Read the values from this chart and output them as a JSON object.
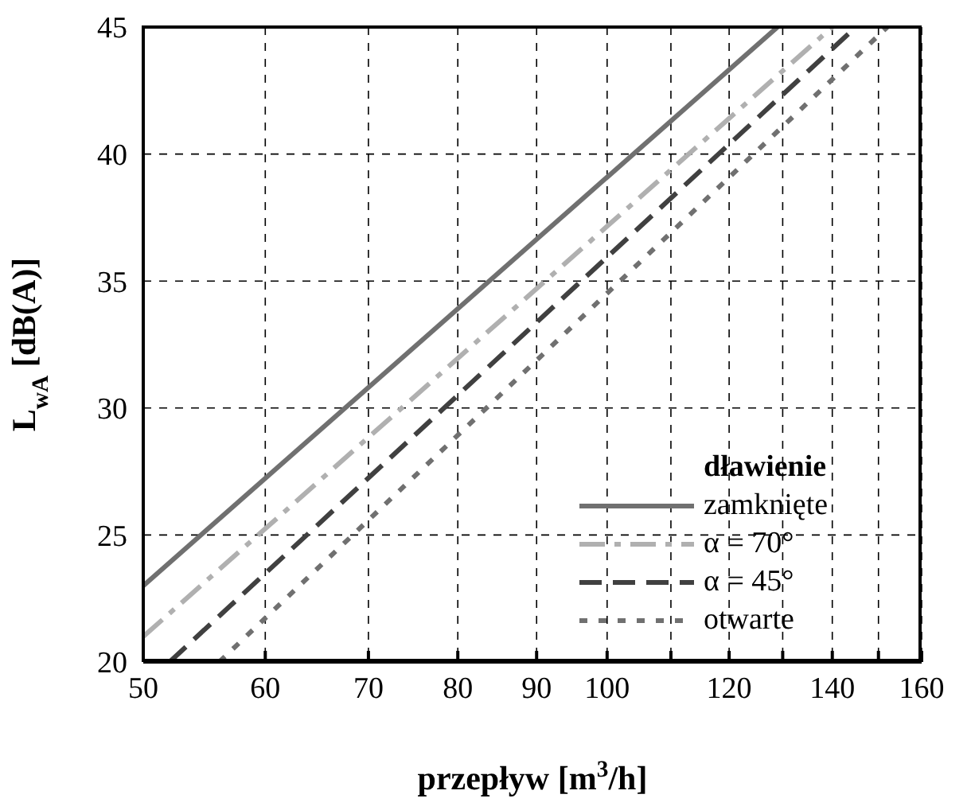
{
  "chart_data": {
    "type": "line",
    "xlabel": "przepływ [m$^{3}$/h]",
    "ylabel": "L$_{wA}$ [dB(A)]",
    "legend_title": "dławienie",
    "series": [
      {
        "name": "zamknięte",
        "color": "#707070",
        "line_style": "solid",
        "x": [
          50,
          129
        ],
        "values": [
          23,
          45
        ]
      },
      {
        "name": "α = 70°",
        "color": "#b0b0b0",
        "line_style": "dashdot",
        "x": [
          50,
          140
        ],
        "values": [
          21,
          45
        ]
      },
      {
        "name": "α = 45°",
        "color": "#404040",
        "line_style": "dashed",
        "x": [
          52,
          145
        ],
        "values": [
          20,
          45
        ]
      },
      {
        "name": "otwarte",
        "color": "#707070",
        "line_style": "dotted",
        "x": [
          56,
          152
        ],
        "values": [
          20,
          45
        ]
      }
    ],
    "log": "x",
    "xlim": [
      50,
      160
    ],
    "xticks": [
      50,
      60,
      70,
      80,
      90,
      100,
      {
        "value": 110,
        "label": null
      },
      120,
      {
        "value": 130,
        "label": null
      },
      140,
      {
        "value": 150,
        "label": null
      },
      160
    ],
    "ylim": [
      20,
      45
    ],
    "yticks": [
      20,
      25,
      30,
      35,
      40,
      45
    ],
    "grid": true,
    "legend": "bottom right",
    "marker": "none"
  }
}
